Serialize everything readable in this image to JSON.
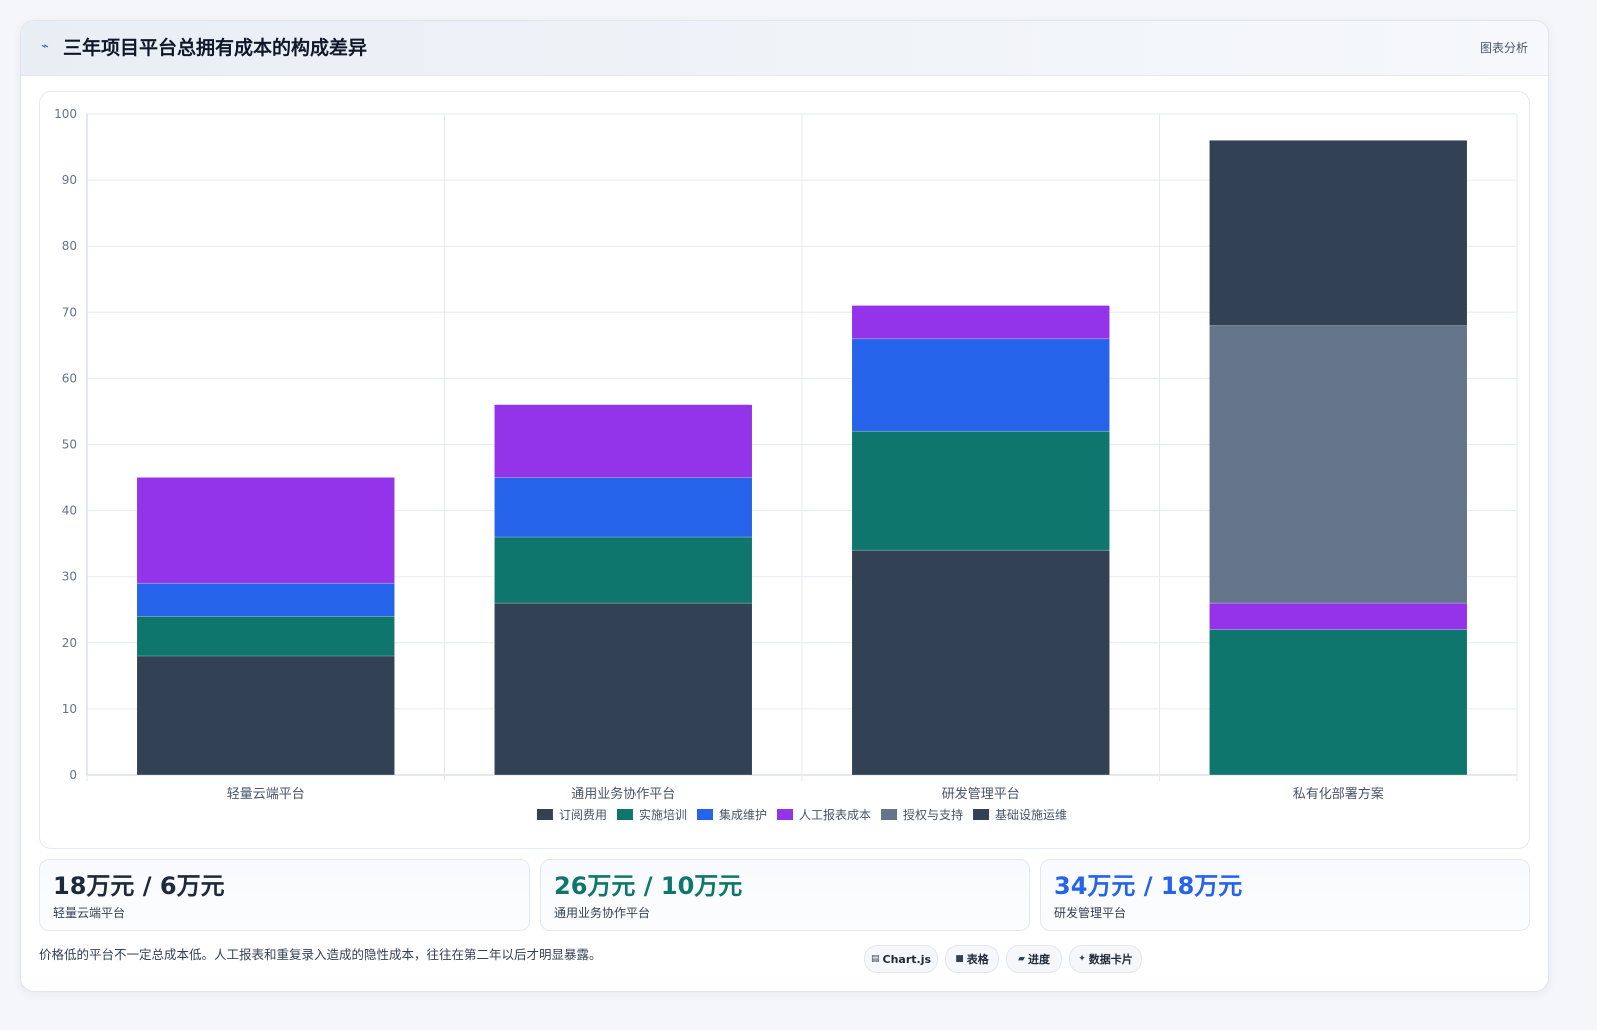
{
  "header": {
    "icon": "trend-icon",
    "title": "三年项目平台总拥有成本的构成差异",
    "tag": "图表分析"
  },
  "chart_data": {
    "type": "bar",
    "stacked": true,
    "categories": [
      "轻量云端平台",
      "通用业务协作平台",
      "研发管理平台",
      "私有化部署方案"
    ],
    "series": [
      {
        "name": "订阅费用",
        "color": "#334155",
        "values": [
          18,
          26,
          34,
          0
        ]
      },
      {
        "name": "实施培训",
        "color": "#0f766e",
        "values": [
          6,
          10,
          18,
          22
        ]
      },
      {
        "name": "集成维护",
        "color": "#2563eb",
        "values": [
          5,
          9,
          14,
          0
        ]
      },
      {
        "name": "人工报表成本",
        "color": "#9333ea",
        "values": [
          16,
          11,
          5,
          4
        ]
      },
      {
        "name": "授权与支持",
        "color": "#64748b",
        "values": [
          0,
          0,
          0,
          42
        ]
      },
      {
        "name": "基础设施运维",
        "color": "#334155",
        "values": [
          0,
          0,
          0,
          28
        ]
      }
    ],
    "ylim": [
      0,
      100
    ],
    "yticks": [
      0,
      10,
      20,
      30,
      40,
      50,
      60,
      70,
      80,
      90,
      100
    ],
    "grid": true,
    "legend_position": "bottom"
  },
  "stats": [
    {
      "value": "18万元 / 6万元",
      "label": "轻量云端平台",
      "color": "#1e293b"
    },
    {
      "value": "26万元 / 10万元",
      "label": "通用业务协作平台",
      "color": "#0f766e"
    },
    {
      "value": "34万元 / 18万元",
      "label": "研发管理平台",
      "color": "#2563eb"
    }
  ],
  "footnote": "价格低的平台不一定总成本低。人工报表和重复录入造成的隐性成本，往往在第二年以后才明显暴露。",
  "chips": [
    {
      "icon": "chart-icon",
      "glyph": "▤",
      "label": "Chart.js"
    },
    {
      "icon": "table-icon",
      "glyph": "■",
      "label": "表格"
    },
    {
      "icon": "progress-icon",
      "glyph": "▰",
      "label": "进度"
    },
    {
      "icon": "sparkle-icon",
      "glyph": "✦",
      "label": "数据卡片"
    }
  ]
}
